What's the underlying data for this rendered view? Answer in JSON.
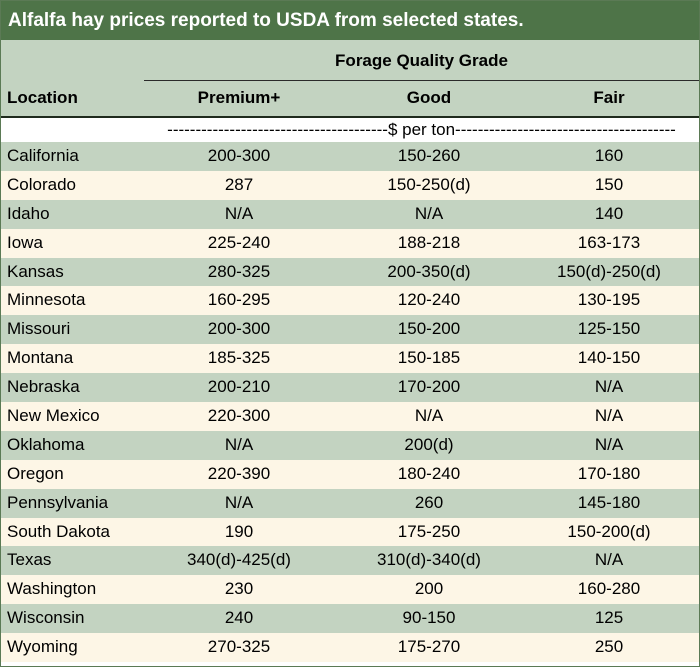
{
  "title": "Alfalfa hay prices reported to USDA from selected states.",
  "header": {
    "group_label": "Forage Quality Grade",
    "location_label": "Location",
    "columns": [
      "Premium+",
      "Good",
      "Fair"
    ],
    "units_label": "---------------------------------------$ per ton---------------------------------------"
  },
  "rows": [
    {
      "location": "California",
      "premium": "200-300",
      "good": "150-260",
      "fair": "160"
    },
    {
      "location": "Colorado",
      "premium": "287",
      "good": "150-250(d)",
      "fair": "150"
    },
    {
      "location": "Idaho",
      "premium": "N/A",
      "good": "N/A",
      "fair": "140"
    },
    {
      "location": "Iowa",
      "premium": "225-240",
      "good": "188-218",
      "fair": "163-173"
    },
    {
      "location": "Kansas",
      "premium": "280-325",
      "good": "200-350(d)",
      "fair": "150(d)-250(d)"
    },
    {
      "location": "Minnesota",
      "premium": "160-295",
      "good": "120-240",
      "fair": "130-195"
    },
    {
      "location": "Missouri",
      "premium": "200-300",
      "good": "150-200",
      "fair": "125-150"
    },
    {
      "location": "Montana",
      "premium": "185-325",
      "good": "150-185",
      "fair": "140-150"
    },
    {
      "location": "Nebraska",
      "premium": "200-210",
      "good": "170-200",
      "fair": "N/A"
    },
    {
      "location": "New Mexico",
      "premium": "220-300",
      "good": "N/A",
      "fair": "N/A"
    },
    {
      "location": "Oklahoma",
      "premium": "N/A",
      "good": "200(d)",
      "fair": "N/A"
    },
    {
      "location": "Oregon",
      "premium": "220-390",
      "good": "180-240",
      "fair": "170-180"
    },
    {
      "location": "Pennsylvania",
      "premium": "N/A",
      "good": "260",
      "fair": "145-180"
    },
    {
      "location": "South Dakota",
      "premium": "190",
      "good": "175-250",
      "fair": "150-200(d)"
    },
    {
      "location": "Texas",
      "premium": "340(d)-425(d)",
      "good": "310(d)-340(d)",
      "fair": "N/A"
    },
    {
      "location": "Washington",
      "premium": "230",
      "good": "200",
      "fair": "160-280"
    },
    {
      "location": "Wisconsin",
      "premium": "240",
      "good": "90-150",
      "fair": "125"
    },
    {
      "location": "Wyoming",
      "premium": "270-325",
      "good": "175-270",
      "fair": "250"
    }
  ],
  "colors": {
    "title_bg": "#4e7448",
    "shade_row": "#c3d3c1",
    "light_row": "#fdf6e6"
  }
}
